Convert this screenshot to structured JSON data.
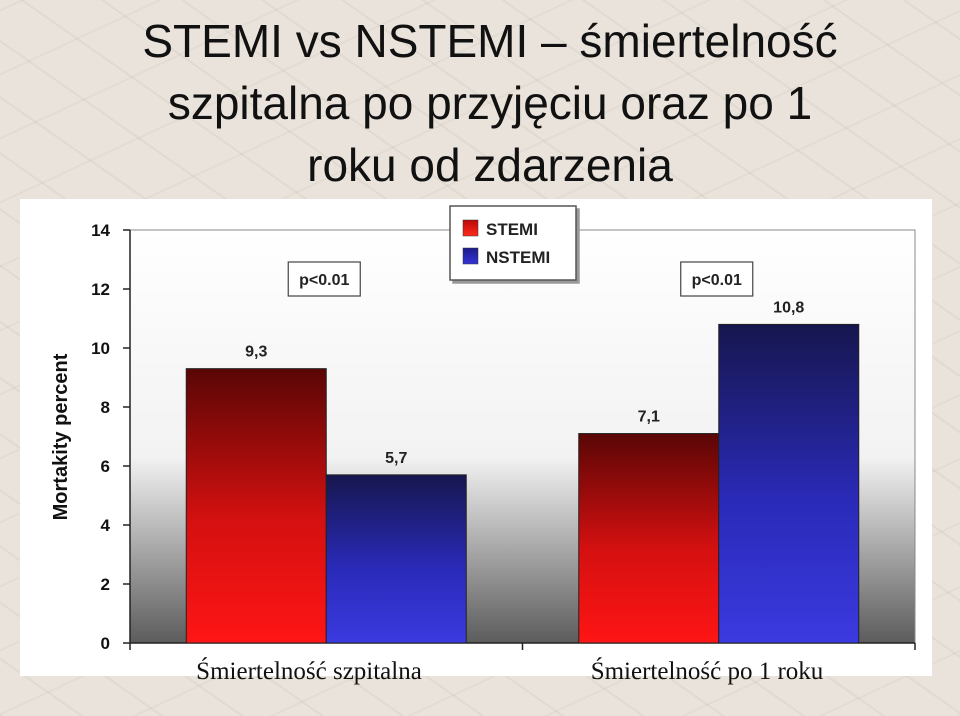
{
  "slide": {
    "title_lines": [
      "STEMI vs NSTEMI – śmiertelność",
      "szpitalna po przyjęciu oraz po 1",
      "roku od zdarzenia"
    ]
  },
  "chart_data": {
    "type": "bar",
    "categories": [
      "Śmiertelność szpitalna",
      "Śmiertelność po 1 roku"
    ],
    "series": [
      {
        "name": "STEMI",
        "values": [
          9.3,
          7.1
        ],
        "labels": [
          "9,3",
          "7,1"
        ],
        "color": "#e01010"
      },
      {
        "name": "NSTEMI",
        "values": [
          5.7,
          10.8
        ],
        "labels": [
          "5,7",
          "10,8"
        ],
        "color": "#2a2ad0"
      }
    ],
    "ylabel": "Mortakity percent",
    "ylim": [
      0,
      14
    ],
    "yticks": [
      0,
      2,
      4,
      6,
      8,
      10,
      12,
      14
    ],
    "annotations": [
      "p<0.01",
      "p<0.01"
    ],
    "legend_position": "top-center",
    "grid": false
  }
}
